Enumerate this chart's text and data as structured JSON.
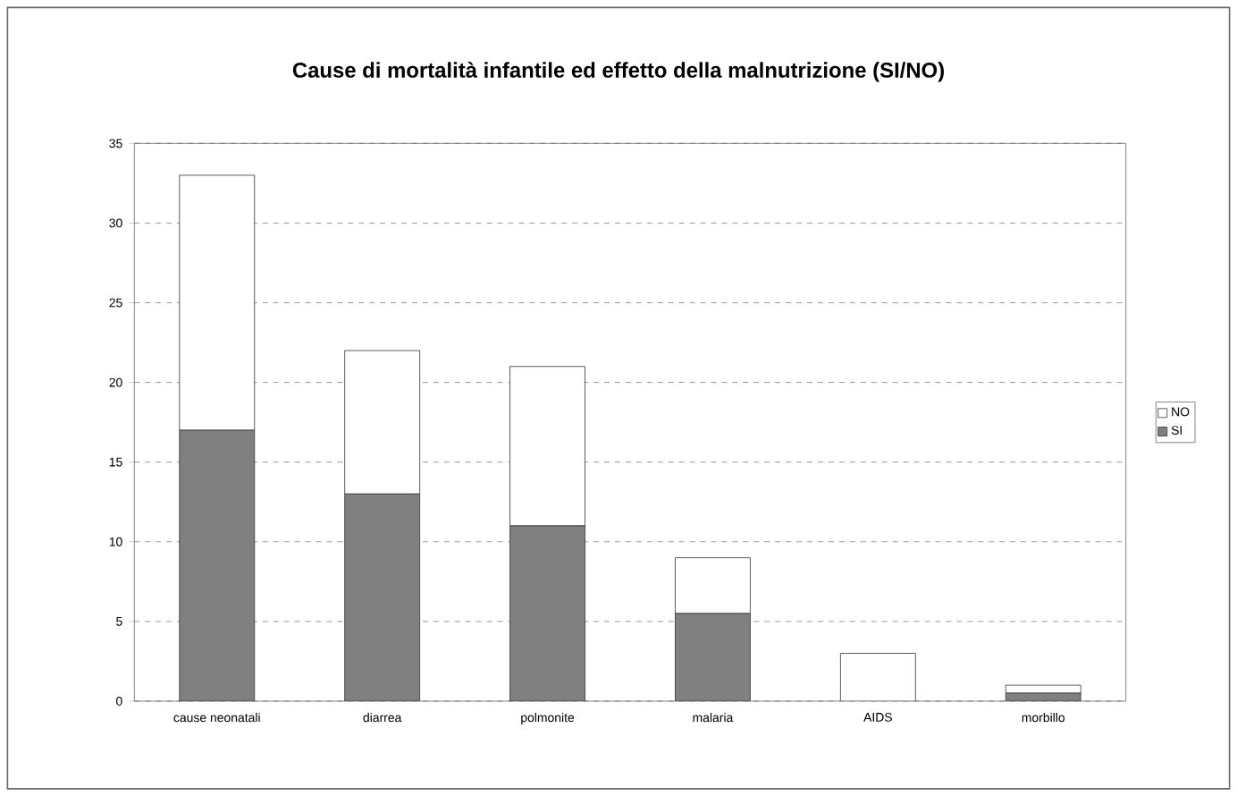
{
  "chart_data": {
    "type": "bar",
    "stacked": true,
    "title": "Cause di mortalità infantile ed effetto della malnutrizione (SI/NO)",
    "categories": [
      "cause neonatali",
      "diarrea",
      "polmonite",
      "malaria",
      "AIDS",
      "morbillo"
    ],
    "series": [
      {
        "name": "SI",
        "color": "#808080",
        "values": [
          17,
          13,
          11,
          5.5,
          0,
          0.5
        ]
      },
      {
        "name": "NO",
        "color": "#ffffff",
        "values": [
          16,
          9,
          10,
          3.5,
          3,
          0.5
        ]
      }
    ],
    "ylim": [
      0,
      35
    ],
    "yticks": [
      0,
      5,
      10,
      15,
      20,
      25,
      30,
      35
    ],
    "grid": "y",
    "legend": "right"
  }
}
